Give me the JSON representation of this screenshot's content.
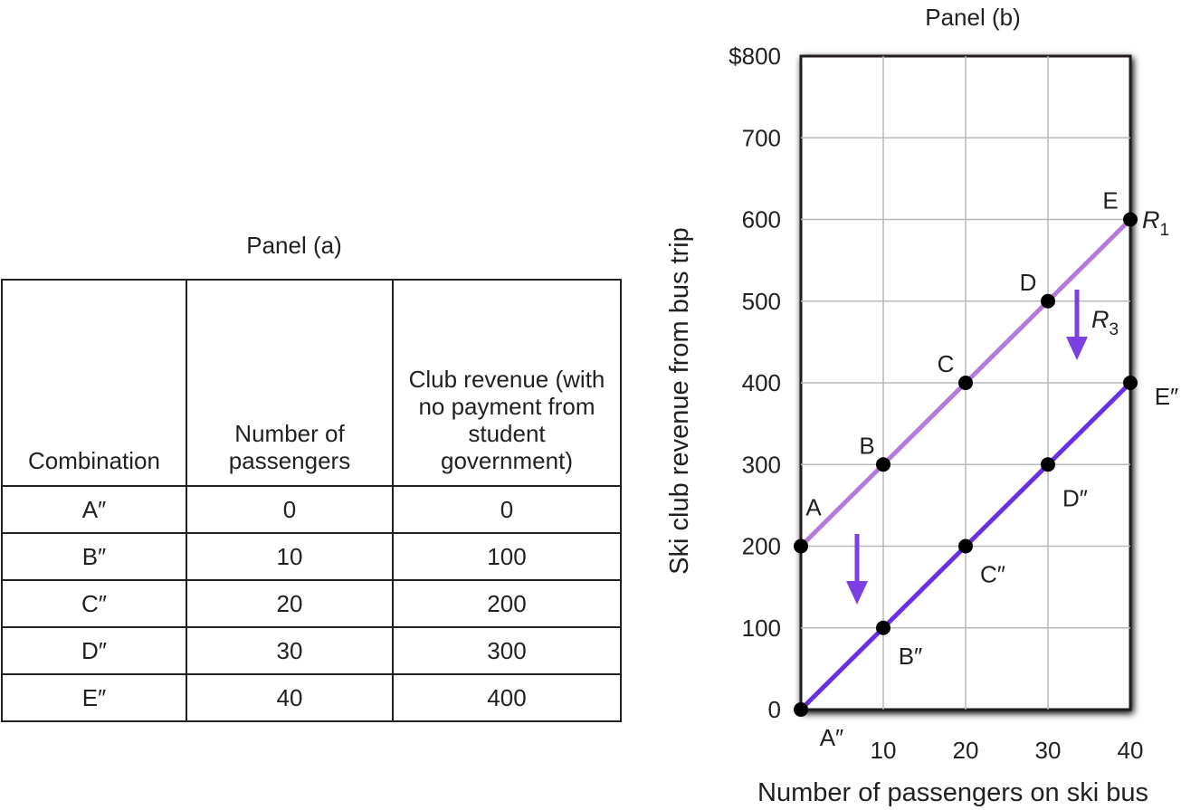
{
  "panel_a": {
    "title": "Panel (a)",
    "headers": [
      "Combination",
      "Number of passengers",
      "Club revenue (with no payment from student government)"
    ],
    "rows": [
      [
        "A″",
        "0",
        "0"
      ],
      [
        "B″",
        "10",
        "100"
      ],
      [
        "C″",
        "20",
        "200"
      ],
      [
        "D″",
        "30",
        "300"
      ],
      [
        "E″",
        "40",
        "400"
      ]
    ]
  },
  "chart_data": {
    "type": "line",
    "title": "Panel (b)",
    "xlabel": "Number of passengers on ski bus",
    "ylabel": "Ski club revenue from bus trip",
    "xlim": [
      0,
      40
    ],
    "ylim": [
      0,
      800
    ],
    "x_ticks": [
      "10",
      "20",
      "30",
      "40"
    ],
    "y_ticks": [
      "0",
      "100",
      "200",
      "300",
      "400",
      "500",
      "600",
      "700",
      "$800"
    ],
    "grid": true,
    "series": [
      {
        "name": "R1",
        "color": "#b47ad9",
        "points": [
          {
            "x": 0,
            "y": 200,
            "label": "A"
          },
          {
            "x": 10,
            "y": 300,
            "label": "B"
          },
          {
            "x": 20,
            "y": 400,
            "label": "C"
          },
          {
            "x": 30,
            "y": 500,
            "label": "D"
          },
          {
            "x": 40,
            "y": 600,
            "label": "E"
          }
        ]
      },
      {
        "name": "R3",
        "color": "#6a2fe0",
        "points": [
          {
            "x": 0,
            "y": 0,
            "label": "A″"
          },
          {
            "x": 10,
            "y": 100,
            "label": "B″"
          },
          {
            "x": 20,
            "y": 200,
            "label": "C″"
          },
          {
            "x": 30,
            "y": 300,
            "label": "D″"
          },
          {
            "x": 40,
            "y": 400,
            "label": "E″"
          }
        ]
      }
    ],
    "annotations": [
      "R1",
      "R3"
    ],
    "arrow_color": "#7b3fe4"
  }
}
